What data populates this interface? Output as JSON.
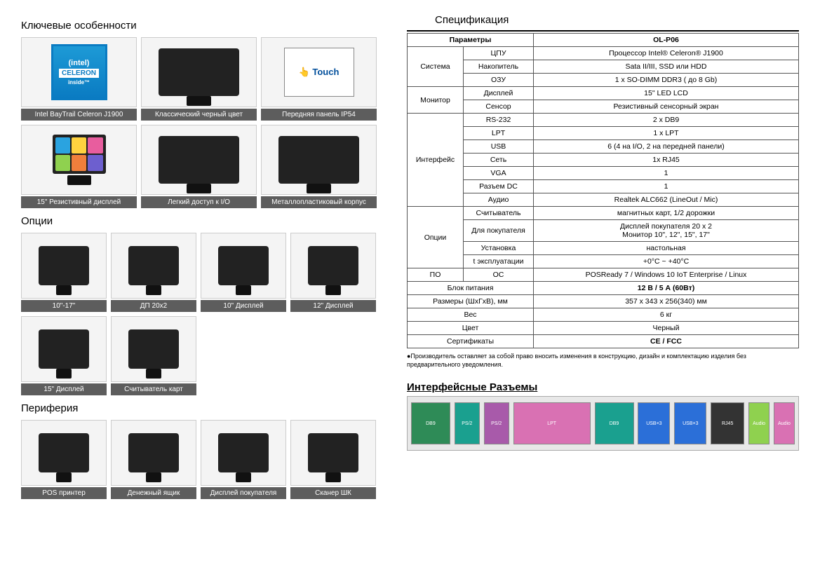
{
  "left": {
    "features_title": "Ключевые особенности",
    "features": [
      {
        "label": "Intel BayTrail Celeron J1900",
        "icon": "intel"
      },
      {
        "label": "Классический черный цвет",
        "icon": "device"
      },
      {
        "label": "Передняя панель IP54",
        "icon": "touch"
      },
      {
        "label": "15\" Резистивный дисплей",
        "icon": "colorgrid"
      },
      {
        "label": "Легкий доступ к I/O",
        "icon": "device"
      },
      {
        "label": "Металлопластиковый корпус",
        "icon": "device"
      }
    ],
    "options_title": "Опции",
    "options": [
      {
        "label": "10\"-17\""
      },
      {
        "label": "ДП 20х2"
      },
      {
        "label": "10\" Дисплей"
      },
      {
        "label": "12\" Дисплей"
      },
      {
        "label": "15\" Дисплей"
      },
      {
        "label": "Считыватель карт"
      }
    ],
    "periphery_title": "Периферия",
    "periphery": [
      {
        "label": "POS принтер"
      },
      {
        "label": "Денежный ящик"
      },
      {
        "label": "Дисплей покупателя"
      },
      {
        "label": "Сканер ШК"
      }
    ]
  },
  "right": {
    "spec_title": "Спецификация",
    "header_param": "Параметры",
    "header_model": "OL-P06",
    "rows": [
      {
        "group": "Система",
        "param": "ЦПУ",
        "value": "Процессор Intel® Celeron® J1900",
        "gspan": 3
      },
      {
        "group": "",
        "param": "Накопитель",
        "value": "Sata II/III, SSD или HDD"
      },
      {
        "group": "",
        "param": "ОЗУ",
        "value": "1 x SO-DIMM DDR3 ( до 8 Gb)"
      },
      {
        "group": "Монитор",
        "param": "Дисплей",
        "value": "15\" LED LCD",
        "gspan": 2
      },
      {
        "group": "",
        "param": "Сенсор",
        "value": "Резистивный сенсорный экран"
      },
      {
        "group": "Интерфейс",
        "param": "RS-232",
        "value": "2 x DB9",
        "gspan": 7
      },
      {
        "group": "",
        "param": "LPT",
        "value": "1 x LPT"
      },
      {
        "group": "",
        "param": "USB",
        "value": "6 (4 на I/O, 2 на передней панели)"
      },
      {
        "group": "",
        "param": "Сеть",
        "value": "1x RJ45"
      },
      {
        "group": "",
        "param": "VGA",
        "value": "1"
      },
      {
        "group": "",
        "param": "Разъем DC",
        "value": "1"
      },
      {
        "group": "",
        "param": "Аудио",
        "value": "Realtek ALC662 (LineOut / Mic)"
      },
      {
        "group": "Опции",
        "param": "Считыватель",
        "value": "магнитных карт, 1/2  дорожки",
        "gspan": 4
      },
      {
        "group": "",
        "param": "Для покупателя",
        "value": "Дисплей покупателя 20 x 2\nМонитор 10\", 12\", 15\", 17\""
      },
      {
        "group": "",
        "param": "Установка",
        "value": "настольная"
      },
      {
        "group": "",
        "param": "t эксплуатации",
        "value": "+0°C ~ +40°C"
      },
      {
        "group": "ПО",
        "param": "ОС",
        "value": "POSReady 7 / Windows 10 IoT Enterprise / Linux",
        "gspan": 1
      }
    ],
    "tail_rows": [
      {
        "param": "Блок питания",
        "value": "12 В / 5 А (60Вт)"
      },
      {
        "param": "Размеры (ШхГхВ), мм",
        "value": "357 x 343 x 256(340) мм"
      },
      {
        "param": "Вес",
        "value": "6 кг"
      },
      {
        "param": "Цвет",
        "value": "Черный"
      },
      {
        "param": "Сертификаты",
        "value": "CE / FCC"
      }
    ],
    "footnote": "●Производитель оставляет за собой право вносить изменения в конструкцию, дизайн и комплектацию изделия без предварительного уведомления.",
    "ports_title": "Интерфейсные Разъемы",
    "ports": [
      "DB9",
      "PS/2",
      "PS/2",
      "LPT",
      "DB9",
      "USB×3",
      "USB×3",
      "RJ45",
      "Audio",
      "Audio"
    ],
    "colors": {
      "port_green": "#2e8b57",
      "port_teal": "#1aa08f",
      "port_purple": "#a85aaa",
      "port_pink": "#d971b3",
      "port_blue": "#2b6fd8",
      "port_black": "#333333",
      "port_lime": "#8fd14f"
    }
  },
  "style": {
    "label_bg": "#5d5d5d",
    "label_fg": "#ffffff",
    "border": "#555555",
    "intel_blue": "#0a7bc2"
  }
}
